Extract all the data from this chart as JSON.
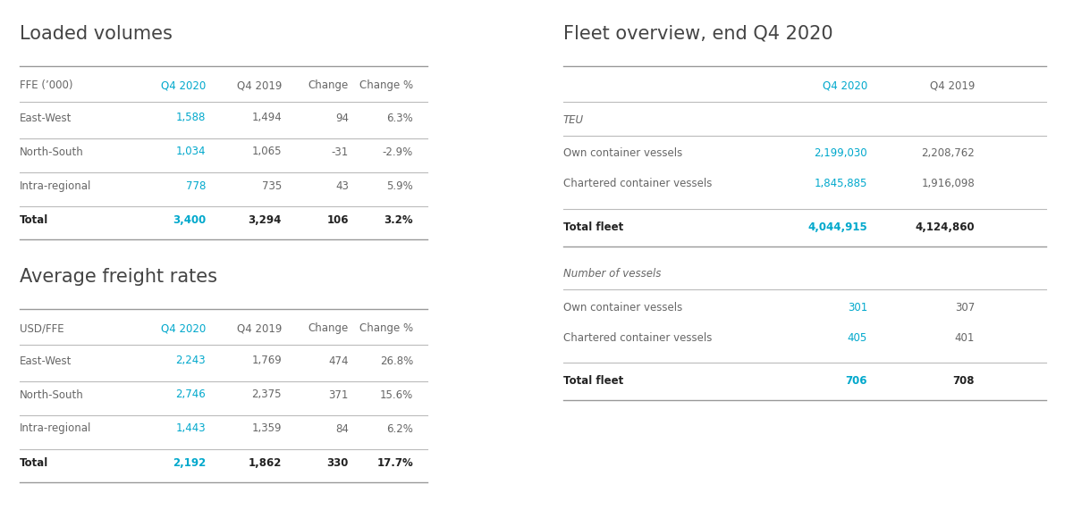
{
  "bg_color": "#ffffff",
  "text_color": "#666666",
  "cyan_color": "#00a8cc",
  "bold_color": "#222222",
  "title_color": "#444444",
  "line_color": "#bbbbbb",
  "line_color_dark": "#999999",
  "lv_title": "Loaded volumes",
  "lv_header_col0": "FFE (’000)",
  "lv_header_col1": "Q4 2020",
  "lv_header_col2": "Q4 2019",
  "lv_header_col3": "Change",
  "lv_header_col4": "Change %",
  "lv_rows": [
    [
      "East-West",
      "1,588",
      "1,494",
      "94",
      "6.3%"
    ],
    [
      "North-South",
      "1,034",
      "1,065",
      "-31",
      "-2.9%"
    ],
    [
      "Intra-regional",
      "778",
      "735",
      "43",
      "5.9%"
    ]
  ],
  "lv_total": [
    "Total",
    "3,400",
    "3,294",
    "106",
    "3.2%"
  ],
  "afr_title": "Average freight rates",
  "afr_header_col0": "USD/FFE",
  "afr_header_col1": "Q4 2020",
  "afr_header_col2": "Q4 2019",
  "afr_header_col3": "Change",
  "afr_header_col4": "Change %",
  "afr_rows": [
    [
      "East-West",
      "2,243",
      "1,769",
      "474",
      "26.8%"
    ],
    [
      "North-South",
      "2,746",
      "2,375",
      "371",
      "15.6%"
    ],
    [
      "Intra-regional",
      "1,443",
      "1,359",
      "84",
      "6.2%"
    ]
  ],
  "afr_total": [
    "Total",
    "2,192",
    "1,862",
    "330",
    "17.7%"
  ],
  "fo_title": "Fleet overview, end Q4 2020",
  "fo_header_col1": "Q4 2020",
  "fo_header_col2": "Q4 2019",
  "fo_section1_label": "TEU",
  "fo_teu_rows": [
    [
      "Own container vessels",
      "2,199,030",
      "2,208,762"
    ],
    [
      "Chartered container vessels",
      "1,845,885",
      "1,916,098"
    ]
  ],
  "fo_teu_total": [
    "Total fleet",
    "4,044,915",
    "4,124,860"
  ],
  "fo_section2_label": "Number of vessels",
  "fo_nov_rows": [
    [
      "Own container vessels",
      "301",
      "307"
    ],
    [
      "Chartered container vessels",
      "405",
      "401"
    ]
  ],
  "fo_nov_total": [
    "Total fleet",
    "706",
    "708"
  ]
}
